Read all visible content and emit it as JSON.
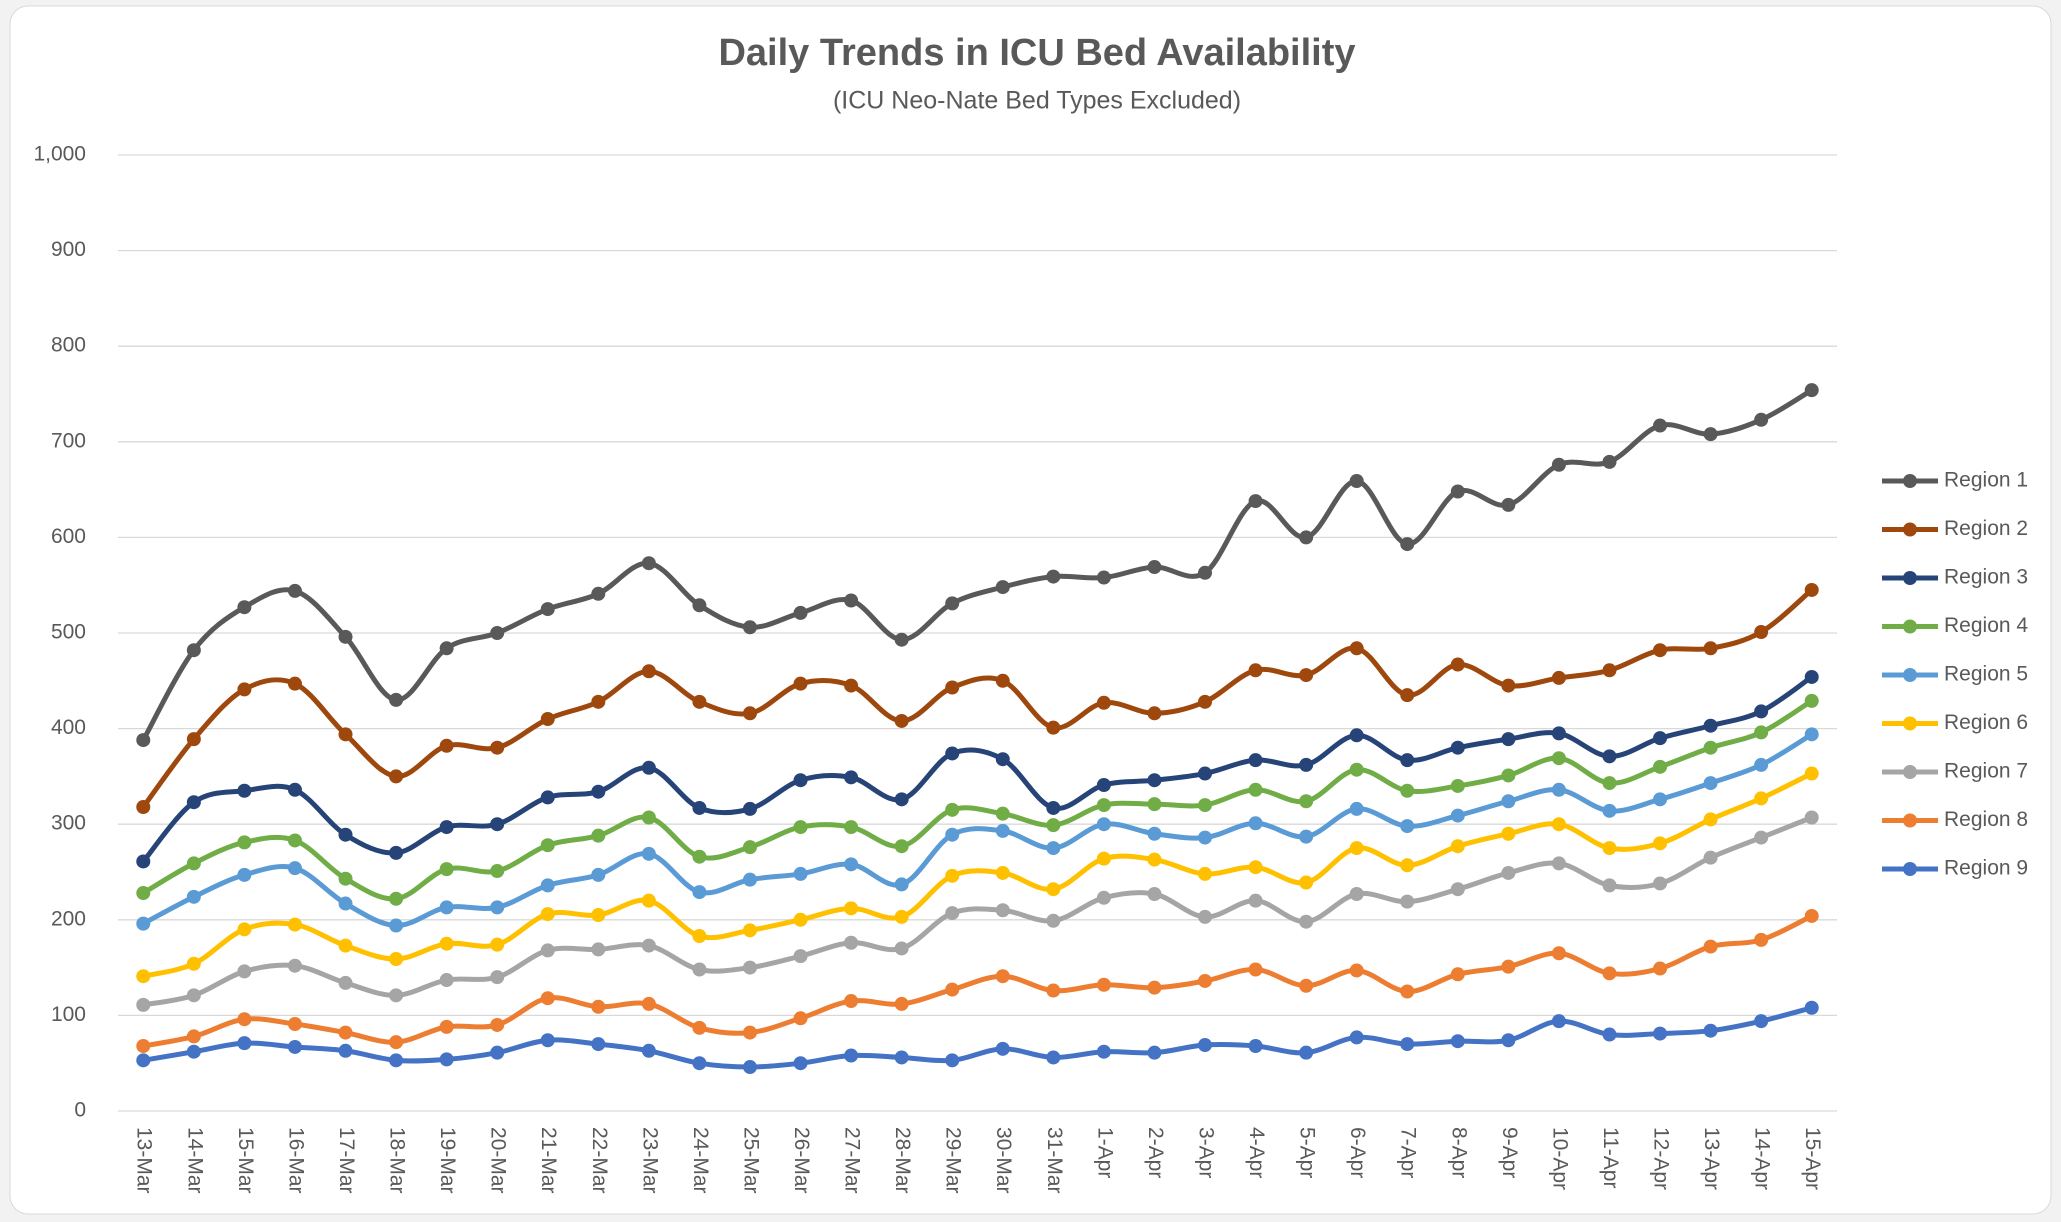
{
  "chart_data": {
    "type": "line",
    "title": "Daily Trends in ICU Bed Availability",
    "subtitle": "(ICU Neo-Nate Bed Types Excluded)",
    "categories": [
      "13-Mar",
      "14-Mar",
      "15-Mar",
      "16-Mar",
      "17-Mar",
      "18-Mar",
      "19-Mar",
      "20-Mar",
      "21-Mar",
      "22-Mar",
      "23-Mar",
      "24-Mar",
      "25-Mar",
      "26-Mar",
      "27-Mar",
      "28-Mar",
      "29-Mar",
      "30-Mar",
      "31-Mar",
      "1-Apr",
      "2-Apr",
      "3-Apr",
      "4-Apr",
      "5-Apr",
      "6-Apr",
      "7-Apr",
      "8-Apr",
      "9-Apr",
      "10-Apr",
      "11-Apr",
      "12-Apr",
      "13-Apr",
      "14-Apr",
      "15-Apr"
    ],
    "series": [
      {
        "name": "Region 1",
        "color": "#595959",
        "values": [
          388,
          482,
          527,
          544,
          496,
          430,
          484,
          500,
          525,
          541,
          573,
          529,
          506,
          521,
          534,
          493,
          531,
          548,
          559,
          558,
          569,
          563,
          638,
          600,
          659,
          593,
          648,
          634,
          676,
          679,
          717,
          708,
          723,
          754
        ]
      },
      {
        "name": "Region 2",
        "color": "#9e480e",
        "values": [
          318,
          389,
          441,
          447,
          394,
          350,
          382,
          380,
          410,
          428,
          460,
          428,
          416,
          447,
          445,
          408,
          443,
          450,
          401,
          427,
          416,
          428,
          461,
          456,
          484,
          435,
          467,
          445,
          453,
          461,
          482,
          484,
          501,
          545
        ]
      },
      {
        "name": "Region 3",
        "color": "#264478",
        "values": [
          261,
          323,
          335,
          336,
          289,
          270,
          297,
          300,
          328,
          334,
          359,
          317,
          316,
          346,
          349,
          326,
          374,
          368,
          317,
          341,
          346,
          353,
          367,
          362,
          393,
          367,
          380,
          389,
          395,
          371,
          390,
          403,
          418,
          454
        ]
      },
      {
        "name": "Region 4",
        "color": "#70ad47",
        "values": [
          228,
          259,
          281,
          283,
          243,
          222,
          253,
          251,
          278,
          288,
          307,
          266,
          276,
          297,
          297,
          277,
          315,
          311,
          299,
          320,
          321,
          320,
          336,
          324,
          357,
          335,
          340,
          351,
          369,
          343,
          360,
          380,
          396,
          429
        ]
      },
      {
        "name": "Region 5",
        "color": "#5b9bd5",
        "values": [
          196,
          224,
          247,
          254,
          217,
          194,
          213,
          213,
          236,
          247,
          269,
          229,
          242,
          248,
          258,
          237,
          289,
          293,
          275,
          300,
          290,
          286,
          301,
          287,
          316,
          298,
          309,
          324,
          336,
          314,
          326,
          343,
          362,
          394
        ]
      },
      {
        "name": "Region 6",
        "color": "#ffc000",
        "values": [
          141,
          154,
          190,
          195,
          173,
          159,
          175,
          174,
          206,
          205,
          220,
          183,
          189,
          200,
          212,
          203,
          246,
          249,
          232,
          264,
          263,
          248,
          255,
          239,
          275,
          257,
          277,
          290,
          300,
          275,
          280,
          305,
          327,
          353
        ]
      },
      {
        "name": "Region 7",
        "color": "#a5a5a5",
        "values": [
          111,
          121,
          146,
          152,
          134,
          121,
          137,
          140,
          168,
          169,
          173,
          148,
          150,
          162,
          176,
          170,
          207,
          210,
          199,
          223,
          227,
          203,
          220,
          198,
          227,
          219,
          232,
          249,
          259,
          236,
          238,
          265,
          286,
          307
        ]
      },
      {
        "name": "Region 8",
        "color": "#ed7d31",
        "values": [
          68,
          78,
          96,
          91,
          82,
          72,
          88,
          90,
          118,
          109,
          112,
          87,
          82,
          97,
          115,
          112,
          127,
          141,
          126,
          132,
          129,
          136,
          148,
          131,
          147,
          125,
          143,
          151,
          165,
          144,
          149,
          172,
          179,
          204
        ]
      },
      {
        "name": "Region 9",
        "color": "#4472c4",
        "values": [
          53,
          62,
          71,
          67,
          63,
          53,
          54,
          61,
          74,
          70,
          63,
          50,
          46,
          50,
          58,
          56,
          53,
          65,
          56,
          62,
          61,
          69,
          68,
          61,
          77,
          70,
          73,
          74,
          94,
          80,
          81,
          84,
          94,
          108
        ]
      }
    ],
    "ylim": [
      0,
      1000
    ],
    "yticks": [
      0,
      100,
      200,
      300,
      400,
      500,
      600,
      700,
      800,
      900,
      {
        "value": 1000,
        "label": "1,000"
      }
    ],
    "grid": true,
    "smooth": true,
    "legend": "right"
  }
}
